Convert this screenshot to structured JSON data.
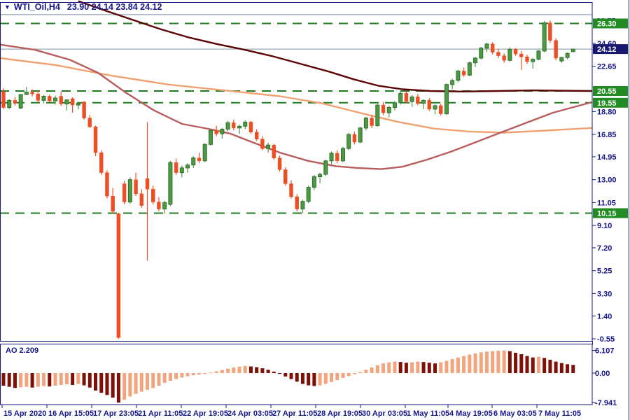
{
  "header": {
    "symbol_timeframe": "WTI_Oil,H4",
    "ohlc": "23.90 24.14 23.84 24.12"
  },
  "colors": {
    "border_navy": "#181878",
    "axis_text": "#14148c",
    "grid_green": "#1e7d1e",
    "level_label_bg": "#228B22",
    "price_label_bg": "#191970",
    "bull": "#4e9a41",
    "bull_border": "#2f7030",
    "bear": "#ee4e23",
    "ao_up": "#f2a47d",
    "ao_down": "#7d1007",
    "ma_slow": "#5c0404",
    "ma_mid": "#b85c5c",
    "ma_fast": "#f0a172",
    "bid_line": "#8293a8"
  },
  "chart_data": {
    "type": "candlestick+histogram",
    "symbol": "WTI_Oil",
    "timeframe": "H4",
    "ohlc_display": {
      "open": "23.90",
      "high": "24.14",
      "low": "23.84",
      "close": "24.12"
    },
    "current_price": 24.12,
    "gray_level": 27.05,
    "level_labels": [
      26.3,
      20.55,
      19.55,
      10.15
    ],
    "price_ticks": [
      24.6,
      22.65,
      18.8,
      16.85,
      14.95,
      13.0,
      11.05,
      9.1,
      7.2,
      5.25,
      3.3,
      1.4,
      -0.55
    ],
    "partial_tick": 26.55,
    "candles": [
      [
        20.5,
        20.8,
        19.0,
        19.15
      ],
      [
        19.15,
        19.85,
        19.0,
        19.75
      ],
      [
        19.75,
        20.05,
        19.3,
        19.5
      ],
      [
        19.1,
        20.3,
        19.0,
        20.25
      ],
      [
        20.25,
        20.9,
        20.2,
        20.45
      ],
      [
        20.45,
        20.7,
        20.1,
        20.3
      ],
      [
        20.3,
        20.6,
        19.6,
        19.75
      ],
      [
        19.75,
        20.2,
        19.5,
        20.1
      ],
      [
        20.1,
        20.25,
        19.6,
        19.7
      ],
      [
        19.7,
        20.15,
        19.4,
        19.95
      ],
      [
        20.1,
        20.5,
        19.3,
        19.45
      ],
      [
        19.45,
        19.85,
        18.9,
        19.8
      ],
      [
        19.9,
        20.0,
        18.7,
        19.35
      ],
      [
        19.35,
        19.6,
        19.0,
        19.5
      ],
      [
        19.6,
        19.7,
        18.1,
        18.25
      ],
      [
        18.25,
        18.5,
        17.4,
        17.5
      ],
      [
        17.5,
        17.6,
        15.0,
        15.3
      ],
      [
        15.3,
        15.5,
        13.4,
        13.6
      ],
      [
        13.6,
        13.8,
        11.4,
        11.6
      ],
      [
        11.6,
        12.3,
        10.1,
        10.3
      ],
      [
        10.1,
        10.2,
        -0.55,
        -0.45
      ],
      [
        12.65,
        12.9,
        10.9,
        11.1
      ],
      [
        11.1,
        13.2,
        10.95,
        13.0
      ],
      [
        13.0,
        13.6,
        11.6,
        11.8
      ],
      [
        11.8,
        12.2,
        10.6,
        10.8
      ],
      [
        13.1,
        17.9,
        6.1,
        12.2
      ],
      [
        12.2,
        12.5,
        10.9,
        11.1
      ],
      [
        11.1,
        11.5,
        10.3,
        10.5
      ],
      [
        10.5,
        11.2,
        10.1,
        11.05
      ],
      [
        10.9,
        14.6,
        10.75,
        14.45
      ],
      [
        14.45,
        14.8,
        13.4,
        13.6
      ],
      [
        13.6,
        14.2,
        13.2,
        14.0
      ],
      [
        14.0,
        14.4,
        13.6,
        14.25
      ],
      [
        14.25,
        15.0,
        14.0,
        14.85
      ],
      [
        14.85,
        15.3,
        14.4,
        14.6
      ],
      [
        14.6,
        16.1,
        14.5,
        16.0
      ],
      [
        16.0,
        17.3,
        15.9,
        17.2
      ],
      [
        17.2,
        17.6,
        16.7,
        16.9
      ],
      [
        16.9,
        17.4,
        16.5,
        17.3
      ],
      [
        17.3,
        18.0,
        17.1,
        17.85
      ],
      [
        17.85,
        18.1,
        17.2,
        17.4
      ],
      [
        17.4,
        17.7,
        16.9,
        17.55
      ],
      [
        17.55,
        18.05,
        17.3,
        17.9
      ],
      [
        17.9,
        18.0,
        16.9,
        17.05
      ],
      [
        17.05,
        17.3,
        16.3,
        16.45
      ],
      [
        16.45,
        16.7,
        15.5,
        15.65
      ],
      [
        15.65,
        16.15,
        15.3,
        15.95
      ],
      [
        15.95,
        16.05,
        14.7,
        14.85
      ],
      [
        14.85,
        15.05,
        13.7,
        13.85
      ],
      [
        13.85,
        14.05,
        12.5,
        12.65
      ],
      [
        12.65,
        12.95,
        11.4,
        11.55
      ],
      [
        11.55,
        11.75,
        10.3,
        10.5
      ],
      [
        10.5,
        11.3,
        10.15,
        11.15
      ],
      [
        11.15,
        12.5,
        11.0,
        12.35
      ],
      [
        12.35,
        13.4,
        12.1,
        13.25
      ],
      [
        13.25,
        13.6,
        12.7,
        13.45
      ],
      [
        13.45,
        14.7,
        13.3,
        14.6
      ],
      [
        14.6,
        15.4,
        14.3,
        15.25
      ],
      [
        15.25,
        15.5,
        14.4,
        14.6
      ],
      [
        14.6,
        15.8,
        14.5,
        15.65
      ],
      [
        15.65,
        17.0,
        15.5,
        16.85
      ],
      [
        16.85,
        17.1,
        16.0,
        16.2
      ],
      [
        16.2,
        17.5,
        16.1,
        17.4
      ],
      [
        17.4,
        18.35,
        17.2,
        18.25
      ],
      [
        18.25,
        18.5,
        17.4,
        17.6
      ],
      [
        17.6,
        19.45,
        17.5,
        19.35
      ],
      [
        19.35,
        19.6,
        18.5,
        18.7
      ],
      [
        18.7,
        19.3,
        18.3,
        19.15
      ],
      [
        19.15,
        19.7,
        18.9,
        19.55
      ],
      [
        19.55,
        20.5,
        19.4,
        20.35
      ],
      [
        20.35,
        20.55,
        19.5,
        19.65
      ],
      [
        19.65,
        20.2,
        19.2,
        20.05
      ],
      [
        20.05,
        20.3,
        19.35,
        19.5
      ],
      [
        19.5,
        19.85,
        19.0,
        19.75
      ],
      [
        19.75,
        19.95,
        18.85,
        19.0
      ],
      [
        19.0,
        19.4,
        18.55,
        19.3
      ],
      [
        19.3,
        19.45,
        18.45,
        18.6
      ],
      [
        18.6,
        21.2,
        18.5,
        21.1
      ],
      [
        21.1,
        21.6,
        20.7,
        21.45
      ],
      [
        21.45,
        22.35,
        21.3,
        22.25
      ],
      [
        22.25,
        22.55,
        21.75,
        21.9
      ],
      [
        21.9,
        23.05,
        21.8,
        22.95
      ],
      [
        22.95,
        23.45,
        22.6,
        23.35
      ],
      [
        23.35,
        24.3,
        23.25,
        24.2
      ],
      [
        24.2,
        24.65,
        23.85,
        24.55
      ],
      [
        24.55,
        24.7,
        23.65,
        23.85
      ],
      [
        23.85,
        24.15,
        23.35,
        23.55
      ],
      [
        23.55,
        23.75,
        22.95,
        23.15
      ],
      [
        23.15,
        24.25,
        23.05,
        24.1
      ],
      [
        24.1,
        24.2,
        23.55,
        23.7
      ],
      [
        23.7,
        23.95,
        22.35,
        23.45
      ],
      [
        23.45,
        23.65,
        22.85,
        23.05
      ],
      [
        23.05,
        23.35,
        22.45,
        23.25
      ],
      [
        23.25,
        24.05,
        23.15,
        23.95
      ],
      [
        23.95,
        26.5,
        23.85,
        26.35
      ],
      [
        26.35,
        26.55,
        24.65,
        24.85
      ],
      [
        24.85,
        25.05,
        23.15,
        23.35
      ],
      [
        23.1,
        23.45,
        22.95,
        23.4
      ],
      [
        23.4,
        23.85,
        23.25,
        23.75
      ],
      [
        23.9,
        24.14,
        23.84,
        24.12
      ]
    ],
    "ma_slow": [
      [
        112,
        28.2
      ],
      [
        150,
        27.4
      ],
      [
        190,
        26.6
      ],
      [
        230,
        25.8
      ],
      [
        270,
        25.1
      ],
      [
        310,
        24.55
      ],
      [
        350,
        24.05
      ],
      [
        390,
        23.5
      ],
      [
        430,
        22.85
      ],
      [
        470,
        22.2
      ],
      [
        505,
        21.55
      ],
      [
        540,
        21.0
      ],
      [
        575,
        20.7
      ],
      [
        615,
        20.55
      ],
      [
        660,
        20.5
      ],
      [
        710,
        20.55
      ],
      [
        760,
        20.6
      ],
      [
        846,
        20.55
      ]
    ],
    "ma_mid": [
      [
        0,
        24.5
      ],
      [
        50,
        24.05
      ],
      [
        100,
        23.2
      ],
      [
        140,
        22.1
      ],
      [
        180,
        20.4
      ],
      [
        220,
        18.9
      ],
      [
        260,
        17.75
      ],
      [
        300,
        17.3
      ],
      [
        330,
        16.9
      ],
      [
        360,
        16.2
      ],
      [
        400,
        15.3
      ],
      [
        440,
        14.6
      ],
      [
        480,
        14.15
      ],
      [
        510,
        14.0
      ],
      [
        545,
        13.9
      ],
      [
        575,
        14.1
      ],
      [
        610,
        14.7
      ],
      [
        645,
        15.4
      ],
      [
        680,
        16.2
      ],
      [
        715,
        17.0
      ],
      [
        750,
        17.8
      ],
      [
        790,
        18.7
      ],
      [
        846,
        19.6
      ]
    ],
    "ma_fast": [
      [
        0,
        23.35
      ],
      [
        80,
        22.75
      ],
      [
        160,
        21.85
      ],
      [
        240,
        21.1
      ],
      [
        320,
        20.6
      ],
      [
        400,
        20.1
      ],
      [
        460,
        19.5
      ],
      [
        520,
        18.6
      ],
      [
        570,
        17.9
      ],
      [
        620,
        17.35
      ],
      [
        670,
        17.1
      ],
      [
        720,
        17.0
      ],
      [
        770,
        17.15
      ],
      [
        846,
        17.4
      ]
    ],
    "ao": {
      "label": "AO 2.209",
      "current": 2.209,
      "tick_labels": [
        "6.107",
        "0.00",
        "-7.941"
      ],
      "tick_values": [
        6.107,
        0,
        -7.941
      ],
      "values": [
        -3.4,
        -3.7,
        -4.0,
        -3.85,
        -3.7,
        -3.9,
        -3.7,
        -3.5,
        -3.6,
        -3.4,
        -3.2,
        -3.0,
        -3.2,
        -2.9,
        -3.3,
        -3.9,
        -4.7,
        -5.3,
        -5.9,
        -6.6,
        -7.941,
        -7.2,
        -6.3,
        -5.6,
        -5.0,
        -4.5,
        -4.0,
        -3.4,
        -2.6,
        -2.1,
        -1.6,
        -1.2,
        -0.85,
        -0.6,
        -0.4,
        -0.2,
        0.15,
        0.5,
        0.85,
        1.2,
        1.5,
        1.75,
        1.9,
        1.8,
        1.6,
        1.3,
        0.9,
        0.4,
        -0.2,
        -0.9,
        -1.6,
        -2.3,
        -2.9,
        -3.3,
        -3.5,
        -3.3,
        -2.9,
        -2.4,
        -1.9,
        -1.3,
        -0.8,
        -0.3,
        0.3,
        0.9,
        1.5,
        2.1,
        2.6,
        2.9,
        3.1,
        3.0,
        2.8,
        2.9,
        3.1,
        3.0,
        2.8,
        2.6,
        2.9,
        3.3,
        3.8,
        4.2,
        4.6,
        5.0,
        5.3,
        5.6,
        5.8,
        5.9,
        6.0,
        6.107,
        5.9,
        5.5,
        5.1,
        4.6,
        4.2,
        4.4,
        4.1,
        3.6,
        3.1,
        2.7,
        2.4,
        2.209
      ]
    },
    "x_labels": [
      "15 Apr 2020",
      "16 Apr 15:05",
      "17 Apr 23:05",
      "21 Apr 11:05",
      "22 Apr 19:05",
      "24 Apr 03:05",
      "27 Apr 11:05",
      "28 Apr 19:05",
      "30 Apr 03:05",
      "1 May 11:05",
      "4 May 19:05",
      "6 May 03:05",
      "7 May 11:05"
    ]
  }
}
